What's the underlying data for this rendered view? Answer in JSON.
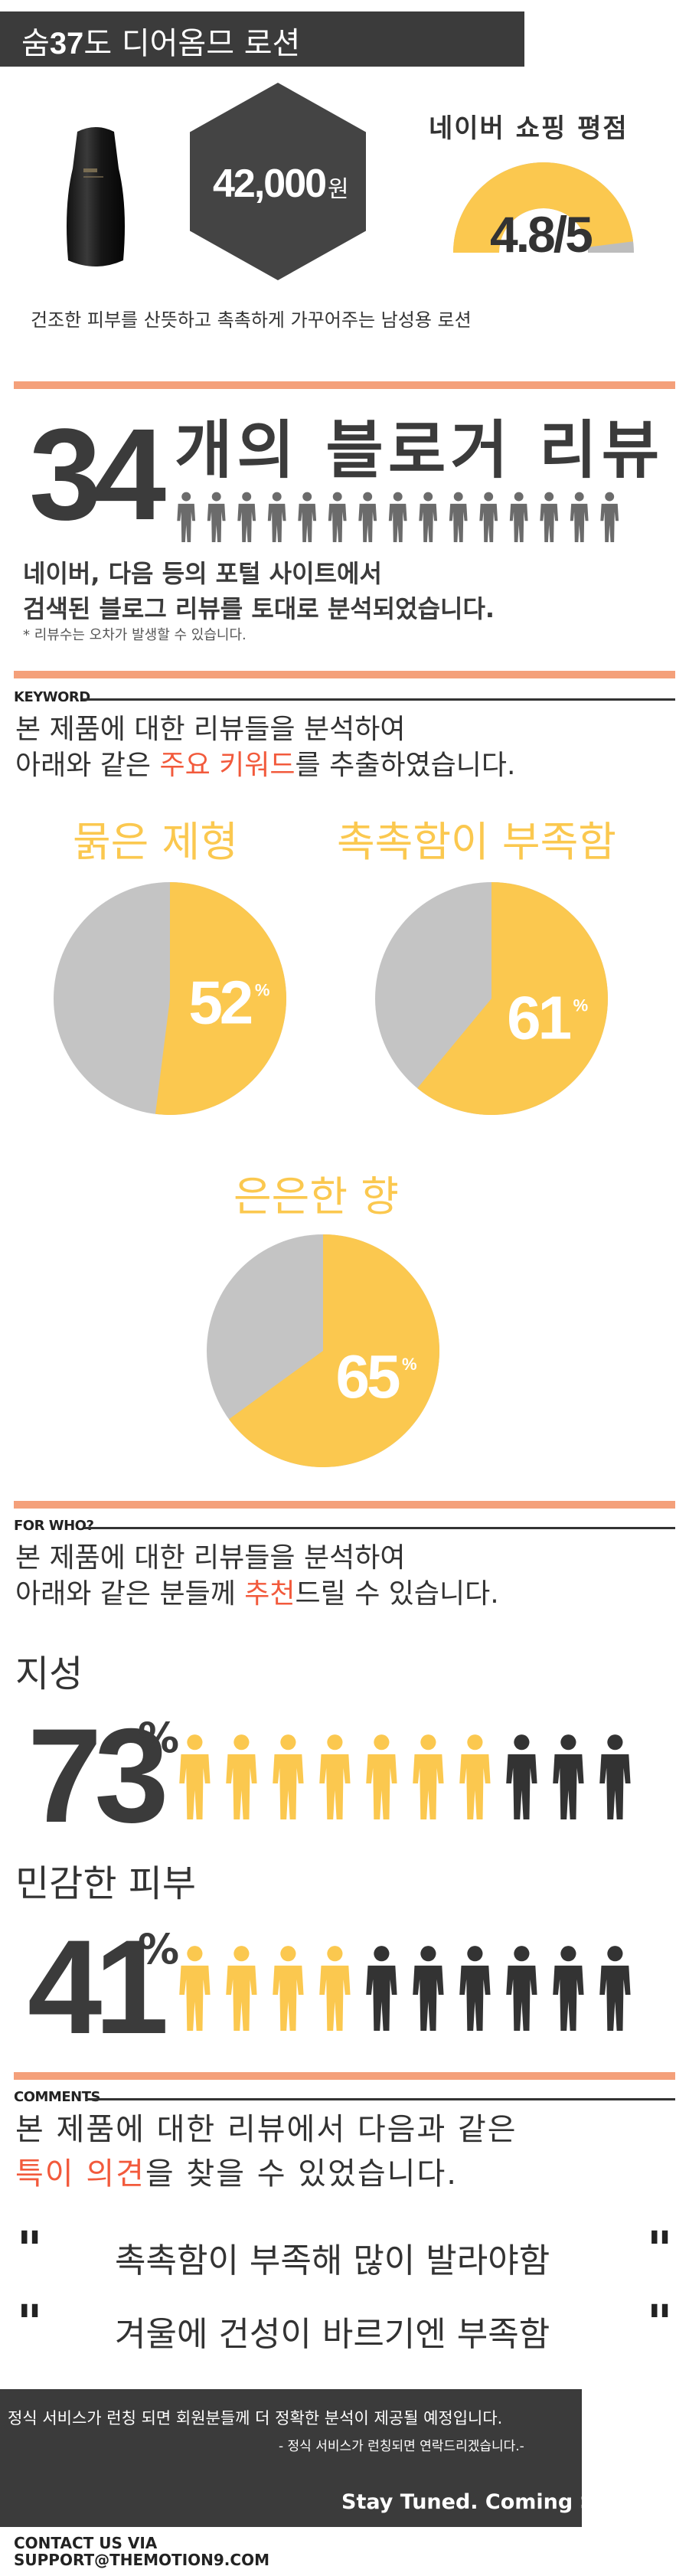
{
  "product": {
    "title_prefix": "숨",
    "title_number": "37",
    "title_suffix": "도 디어옴므 로션",
    "price": "42,000",
    "price_unit": "원",
    "description": "건조한 피부를 산뜻하고 촉촉하게 가꾸어주는 남성용 로션"
  },
  "rating": {
    "title": "네이버 쇼핑 평점",
    "value": "4.8/5",
    "score": 4.8,
    "max": 5,
    "fill_color": "#fbc84f",
    "empty_color": "#bdbdbd"
  },
  "reviews": {
    "count": "34",
    "title": "개의 블로거 리뷰",
    "people_icon_count": 15,
    "icon_color": "#6b6b6b",
    "source_line1": "네이버, 다음 등의 포털 사이트에서",
    "source_line2": "검색된 블로그 리뷰를 토대로 분석되었습니다.",
    "footnote": "* 리뷰수는 오차가 발생할 수 있습니다."
  },
  "keyword_section": {
    "label": "KEYWORD",
    "intro_line1": "본 제품에 대한 리뷰들을 분석하여",
    "intro_line2_before": "아래와 같은 ",
    "intro_line2_highlight": "주요 키워드",
    "intro_line2_after": "를 추출하였습니다."
  },
  "chart_data": [
    {
      "type": "pie",
      "title": "묽은 제형",
      "values": [
        52,
        48
      ],
      "labels": [
        "52%",
        ""
      ],
      "colors": [
        "#fbc84f",
        "#c4c4c4"
      ]
    },
    {
      "type": "pie",
      "title": "촉촉함이 부족함",
      "values": [
        61,
        39
      ],
      "labels": [
        "61%",
        ""
      ],
      "colors": [
        "#fbc84f",
        "#c4c4c4"
      ]
    },
    {
      "type": "pie",
      "title": "은은한 향",
      "values": [
        65,
        35
      ],
      "labels": [
        "65%",
        ""
      ],
      "colors": [
        "#fbc84f",
        "#c4c4c4"
      ]
    }
  ],
  "pie_value_texts": [
    "52",
    "61",
    "65"
  ],
  "pie_pct_sign": "%",
  "for_who_section": {
    "label": "FOR WHO?",
    "intro_line1": "본 제품에 대한 리뷰들을 분석하여",
    "intro_line2_before": "아래와 같은 분들께 ",
    "intro_line2_highlight": "추천",
    "intro_line2_after": "드릴 수 있습니다.",
    "groups": [
      {
        "label": "지성",
        "percent": "73",
        "sign": "%",
        "filled": 7,
        "total": 10
      },
      {
        "label": "민감한 피부",
        "percent": "41",
        "sign": "%",
        "filled": 4,
        "total": 10
      }
    ],
    "filled_color": "#fbc84f",
    "empty_color": "#333333"
  },
  "comments_section": {
    "label": "COMMENTS",
    "intro_line1": "본 제품에 대한 리뷰에서 다음과 같은",
    "intro_line2_highlight": "특이 의견",
    "intro_line2_after": "을 찾을 수 있었습니다.",
    "quote_mark": "\"",
    "comments": [
      "촉촉함이 부족해 많이 발라야함",
      "겨울에 건성이 바르기엔 부족함"
    ]
  },
  "notice": {
    "line1": "정식 서비스가 런칭 되면 회원분들께 더 정확한 분석이 제공될 예정입니다.",
    "line2": "- 정식 서비스가 런칭되면 연락드리겠습니다.-",
    "stay_tuned": "Stay Tuned. Coming Soon!"
  },
  "contact": {
    "line1": "CONTACT US VIA",
    "line2": "SUPPORT@THEMOTION9.COM"
  }
}
